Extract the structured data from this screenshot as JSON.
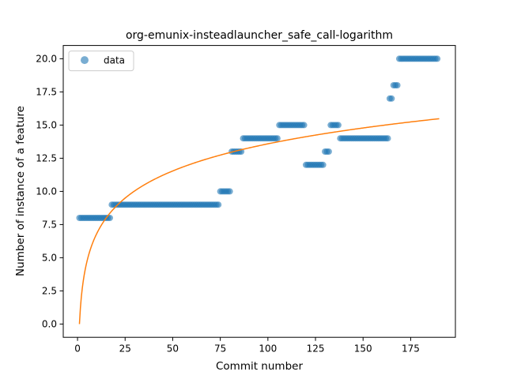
{
  "chart_data": {
    "type": "scatter",
    "title": "org-emunix-insteadlauncher_safe_call-logarithm",
    "xlabel": "Commit number",
    "ylabel": "Number of instance of a feature",
    "xlim": [
      -7.5,
      198.5
    ],
    "ylim": [
      -1.0,
      21.0
    ],
    "xticks": [
      0,
      25,
      50,
      75,
      100,
      125,
      150,
      175
    ],
    "xtick_labels": [
      "0",
      "25",
      "50",
      "75",
      "100",
      "125",
      "150",
      "175"
    ],
    "yticks": [
      0.0,
      2.5,
      5.0,
      7.5,
      10.0,
      12.5,
      15.0,
      17.5,
      20.0
    ],
    "ytick_labels": [
      "0.0",
      "2.5",
      "5.0",
      "7.5",
      "10.0",
      "12.5",
      "15.0",
      "17.5",
      "20.0"
    ],
    "grid": false,
    "legend": {
      "placement": "top-left",
      "entries": [
        "data"
      ]
    },
    "colors": {
      "data": "#1f77b4",
      "fit": "#ff7f0e"
    },
    "series": [
      {
        "name": "data",
        "kind": "points",
        "segments": [
          {
            "x_from": 1,
            "x_to": 17,
            "y": 8
          },
          {
            "x_from": 18,
            "x_to": 74,
            "y": 9
          },
          {
            "x_from": 75,
            "x_to": 80,
            "y": 10
          },
          {
            "x_from": 81,
            "x_to": 86,
            "y": 13
          },
          {
            "x_from": 87,
            "x_to": 105,
            "y": 14
          },
          {
            "x_from": 106,
            "x_to": 119,
            "y": 15
          },
          {
            "x_from": 120,
            "x_to": 129,
            "y": 12
          },
          {
            "x_from": 130,
            "x_to": 132,
            "y": 13
          },
          {
            "x_from": 133,
            "x_to": 137,
            "y": 15
          },
          {
            "x_from": 138,
            "x_to": 163,
            "y": 14
          },
          {
            "x_from": 164,
            "x_to": 165,
            "y": 17
          },
          {
            "x_from": 166,
            "x_to": 168,
            "y": 18
          },
          {
            "x_from": 169,
            "x_to": 189,
            "y": 20
          }
        ]
      },
      {
        "kind": "curve",
        "model": "logarithm",
        "a": 2.95,
        "b": 0.0,
        "x_range": [
          1,
          190
        ]
      }
    ]
  }
}
